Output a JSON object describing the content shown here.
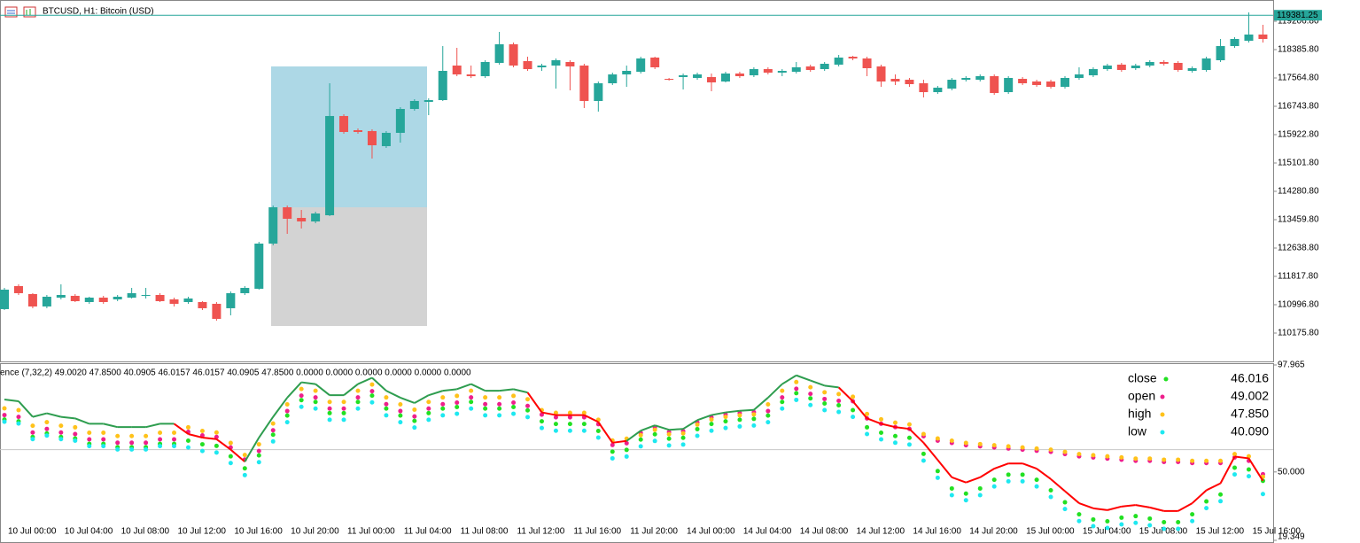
{
  "chart_data": [
    {
      "type": "candlestick",
      "title": "BTCUSD, H1:  Bitcoin (USD)",
      "categories": [
        null,
        "10 Jul 00:00",
        null,
        null,
        null,
        "10 Jul 04:00",
        null,
        null,
        null,
        "10 Jul 08:00",
        null,
        null,
        null,
        "10 Jul 12:00",
        null,
        null,
        null,
        "10 Jul 16:00",
        null,
        null,
        null,
        "10 Jul 20:00",
        null,
        null,
        null,
        "11 Jul 00:00",
        null,
        null,
        null,
        "11 Jul 04:00",
        null,
        null,
        null,
        "11 Jul 08:00",
        null,
        null,
        null,
        "11 Jul 12:00",
        null,
        null,
        null,
        "11 Jul 16:00",
        null,
        null,
        null,
        "11 Jul 20:00",
        null,
        null,
        null,
        "14 Jul 00:00",
        null,
        null,
        null,
        "14 Jul 04:00",
        null,
        null,
        null,
        "14 Jul 08:00",
        null,
        null,
        null,
        "14 Jul 12:00",
        null,
        null,
        null,
        "14 Jul 16:00",
        null,
        null,
        null,
        "14 Jul 20:00",
        null,
        null,
        null,
        "15 Jul 00:00",
        null,
        null,
        null,
        "15 Jul 04:00",
        null,
        null,
        null,
        "15 Jul 08:00",
        null,
        null,
        null,
        "15 Jul 12:00",
        null,
        null,
        null,
        "15 Jul 16:00"
      ],
      "open": [
        110869,
        111536,
        111305,
        110946,
        111202,
        111254,
        111074,
        111202,
        111151,
        111202,
        111254,
        111279,
        111151,
        111074,
        111074,
        111023,
        110895,
        111331,
        111459,
        112767,
        113819,
        113511,
        113409,
        113588,
        116462,
        116051,
        116026,
        115590,
        115975,
        116667,
        116872,
        116923,
        117924,
        117667,
        117616,
        118001,
        118540,
        118052,
        117873,
        117924,
        118027,
        117924,
        116898,
        117411,
        117667,
        117744,
        118155,
        117539,
        117590,
        117565,
        117590,
        117462,
        117693,
        117642,
        117821,
        117719,
        117744,
        117898,
        117821,
        117950,
        118180,
        118129,
        117898,
        117539,
        117513,
        117411,
        117154,
        117257,
        117513,
        117513,
        117616,
        117154,
        117539,
        117462,
        117462,
        117308,
        117565,
        117642,
        117821,
        117950,
        117847,
        117924,
        118027,
        118001,
        117770,
        117796,
        118078,
        118488,
        118642,
        118822
      ],
      "high": [
        111484,
        111587,
        111331,
        111279,
        111587,
        111305,
        111228,
        111254,
        111279,
        111484,
        111484,
        111331,
        111202,
        111228,
        111100,
        111074,
        111382,
        111536,
        112818,
        113870,
        113870,
        113742,
        113690,
        117411,
        116513,
        116103,
        116077,
        116026,
        116718,
        116949,
        116975,
        118488,
        118437,
        117924,
        118078,
        118899,
        118591,
        118180,
        117975,
        118129,
        118078,
        117975,
        117462,
        117719,
        117924,
        118180,
        118180,
        117565,
        117693,
        117719,
        117693,
        117744,
        117744,
        117873,
        117873,
        117821,
        118027,
        117950,
        118027,
        118232,
        118206,
        118180,
        117950,
        117667,
        117565,
        117513,
        117334,
        117565,
        117616,
        117667,
        117667,
        117616,
        117590,
        117513,
        117513,
        117616,
        117873,
        117873,
        117975,
        118001,
        117975,
        118078,
        118078,
        118052,
        117898,
        118180,
        118694,
        118745,
        119463,
        119104
      ],
      "low": [
        110843,
        111279,
        110895,
        110895,
        111151,
        111074,
        111023,
        111023,
        111100,
        111177,
        111177,
        111074,
        110946,
        111023,
        110843,
        110535,
        110689,
        111279,
        111433,
        112716,
        113049,
        113203,
        113357,
        113562,
        115949,
        115949,
        115230,
        115538,
        115692,
        116616,
        116487,
        116898,
        117616,
        117565,
        117565,
        117950,
        117873,
        117770,
        117770,
        117257,
        117206,
        116693,
        116590,
        117360,
        117308,
        117693,
        117821,
        117488,
        117231,
        117513,
        117180,
        117436,
        117565,
        117590,
        117667,
        117616,
        117693,
        117744,
        117770,
        117898,
        118078,
        117616,
        117308,
        117360,
        117308,
        117000,
        117103,
        117206,
        117462,
        117462,
        117077,
        117103,
        117360,
        117308,
        117257,
        117257,
        117513,
        117590,
        117770,
        117744,
        117796,
        117873,
        117924,
        117744,
        117719,
        117744,
        118027,
        118437,
        118591,
        118591
      ],
      "close": [
        111433,
        111331,
        110946,
        111228,
        111279,
        111100,
        111202,
        111074,
        111228,
        111331,
        111279,
        111100,
        111023,
        111177,
        110895,
        110587,
        111331,
        111484,
        112767,
        113819,
        113486,
        113409,
        113639,
        116462,
        116000,
        116000,
        115615,
        115975,
        116667,
        116898,
        116923,
        117770,
        117667,
        117616,
        118027,
        118540,
        117924,
        117821,
        117924,
        118078,
        117898,
        116898,
        117411,
        117667,
        117770,
        118129,
        117873,
        117513,
        117642,
        117667,
        117436,
        117693,
        117616,
        117821,
        117719,
        117770,
        117873,
        117796,
        117975,
        118155,
        118129,
        117847,
        117462,
        117462,
        117385,
        117154,
        117283,
        117513,
        117565,
        117616,
        117129,
        117565,
        117411,
        117360,
        117308,
        117565,
        117667,
        117821,
        117924,
        117796,
        117924,
        118027,
        117975,
        117796,
        117847,
        118129,
        118488,
        118694,
        118822,
        118694
      ],
      "up_color": "#26a69a",
      "down_color": "#ef5350",
      "ylim": [
        109354.8,
        119822.55
      ],
      "yticks": [
        {
          "value": 119206.8,
          "label": "119206.80"
        },
        {
          "value": 118385.8,
          "label": "118385.80"
        },
        {
          "value": 117564.8,
          "label": "117564.80"
        },
        {
          "value": 116743.8,
          "label": "116743.80"
        },
        {
          "value": 115922.8,
          "label": "115922.80"
        },
        {
          "value": 115101.8,
          "label": "115101.80"
        },
        {
          "value": 114280.8,
          "label": "114280.80"
        },
        {
          "value": 113459.8,
          "label": "113459.80"
        },
        {
          "value": 112638.8,
          "label": "112638.80"
        },
        {
          "value": 111817.8,
          "label": "111817.80"
        },
        {
          "value": 110996.8,
          "label": "110996.80"
        },
        {
          "value": 110175.8,
          "label": "110175.80"
        }
      ],
      "last_price": 119381.25
    },
    {
      "type": "indicator",
      "title": "ence (7,32,2) 49.0020 47.8500 40.0905 46.0157 46.0157 40.0905 47.8500 0.0000 0.0000 0.0000 0.0000 0.0000 0.0000",
      "ylim": [
        19.349,
        97.965
      ],
      "yticks": [
        97.965,
        {
          "value": 50,
          "label": "50.000"
        },
        19.349
      ],
      "levels": [
        60
      ],
      "line": {
        "color_up": "#2e9d4f",
        "color_down": "#ff0000",
        "values": [
          82.5,
          81.7,
          74.7,
          76.3,
          74.7,
          74.0,
          71.6,
          71.6,
          70.1,
          70.1,
          70.1,
          71.6,
          71.6,
          67.0,
          65.4,
          64.7,
          60.0,
          54.6,
          65.4,
          74.7,
          83.3,
          90.2,
          89.4,
          84.4,
          84.4,
          89.4,
          92.2,
          86.4,
          83.3,
          80.9,
          84.4,
          86.4,
          87.1,
          89.4,
          86.4,
          86.4,
          87.1,
          85.6,
          76.7,
          75.5,
          75.5,
          75.5,
          72.4,
          63.1,
          63.9,
          68.5,
          70.9,
          68.9,
          69.3,
          73.2,
          75.5,
          76.7,
          77.4,
          77.8,
          83.3,
          89.4,
          93.3,
          91.0,
          88.7,
          87.9,
          81.7,
          74.0,
          71.6,
          70.1,
          69.3,
          63.1,
          55.4,
          47.6,
          45.3,
          47.6,
          51.5,
          53.8,
          53.8,
          51.5,
          46.8,
          41.4,
          36.0,
          33.7,
          32.9,
          34.5,
          35.2,
          34.1,
          32.5,
          32.5,
          36.0,
          41.8,
          44.9,
          56.9,
          56.1,
          46.016
        ]
      },
      "series": [
        {
          "name": "close",
          "color": "#22e022",
          "last_label": "46.016",
          "values": [
            73.5,
            72.7,
            65.7,
            67.3,
            65.7,
            65.0,
            62.6,
            62.6,
            61.1,
            61.1,
            61.1,
            62.6,
            62.6,
            64.0,
            62.4,
            61.7,
            57.0,
            51.6,
            57.4,
            66.7,
            75.3,
            82.2,
            81.4,
            76.4,
            76.4,
            81.4,
            84.2,
            78.4,
            75.3,
            72.9,
            76.4,
            78.4,
            79.1,
            81.4,
            78.4,
            78.4,
            79.1,
            77.6,
            72.7,
            71.5,
            71.5,
            71.5,
            68.4,
            59.1,
            59.9,
            64.5,
            66.9,
            64.9,
            65.3,
            69.2,
            71.5,
            72.7,
            73.4,
            73.8,
            75.3,
            81.4,
            85.3,
            83.0,
            80.7,
            79.9,
            77.7,
            70.0,
            67.6,
            66.1,
            65.3,
            58.1,
            50.4,
            42.6,
            40.3,
            42.6,
            46.5,
            48.8,
            48.8,
            46.5,
            41.8,
            36.4,
            31.0,
            28.7,
            27.9,
            29.5,
            30.2,
            29.1,
            27.5,
            27.5,
            31.0,
            36.8,
            39.9,
            51.9,
            51.1,
            46.016
          ]
        },
        {
          "name": "open",
          "color": "#ee1f8c",
          "last_label": "49.002",
          "values": [
            75.5,
            74.7,
            67.7,
            69.3,
            67.7,
            67.0,
            64.6,
            64.6,
            63.1,
            63.1,
            63.1,
            64.6,
            64.6,
            68.0,
            66.4,
            65.7,
            61.0,
            55.6,
            59.4,
            68.7,
            77.3,
            84.2,
            83.4,
            78.4,
            78.4,
            83.4,
            86.2,
            80.4,
            77.3,
            74.9,
            78.4,
            80.4,
            81.1,
            83.4,
            80.4,
            80.4,
            81.1,
            79.6,
            75.7,
            74.5,
            74.5,
            74.5,
            71.4,
            62.1,
            62.9,
            67.5,
            69.9,
            67.9,
            68.3,
            72.2,
            74.5,
            75.7,
            76.4,
            76.8,
            77.3,
            83.4,
            87.3,
            85.0,
            82.7,
            81.9,
            81.7,
            74.0,
            71.6,
            70.1,
            69.3,
            66,
            64,
            63,
            62,
            61.5,
            61,
            60.5,
            60,
            59.5,
            59,
            58,
            57,
            56.5,
            56,
            55.5,
            55,
            55,
            54.5,
            54.5,
            54,
            54,
            54,
            56.5,
            55,
            49.002
          ]
        },
        {
          "name": "high",
          "color": "#ffc21a",
          "last_label": "47.850",
          "values": [
            78.5,
            77.7,
            70.7,
            72.3,
            70.7,
            70.0,
            67.6,
            67.6,
            66.1,
            66.1,
            66.1,
            67.6,
            67.6,
            70.0,
            68.4,
            67.7,
            63.0,
            57.6,
            62.4,
            71.7,
            80.3,
            87.2,
            86.4,
            81.4,
            81.4,
            86.4,
            89.2,
            83.4,
            80.3,
            77.9,
            81.4,
            83.4,
            84.1,
            86.4,
            83.4,
            83.4,
            84.1,
            82.6,
            77.7,
            76.5,
            76.5,
            76.5,
            73.4,
            64.1,
            64.9,
            66.5,
            68.9,
            66.9,
            67.3,
            71.2,
            73.5,
            74.7,
            75.4,
            75.8,
            80.3,
            86.4,
            90.3,
            88.0,
            85.7,
            84.9,
            83.7,
            76.0,
            73.6,
            72.1,
            71.3,
            67,
            65,
            64,
            63,
            62.5,
            62,
            61.5,
            61,
            60.5,
            60,
            59,
            58,
            57.5,
            57,
            56.5,
            56,
            56,
            55.5,
            55.5,
            55,
            55,
            55,
            58,
            57,
            47.85
          ]
        },
        {
          "name": "low",
          "color": "#1ee8f0",
          "last_label": "40.090",
          "values": [
            72.5,
            71.7,
            64.7,
            66.3,
            64.7,
            64.0,
            61.6,
            61.6,
            60.1,
            60.1,
            60.1,
            61.6,
            61.6,
            61.0,
            59.4,
            58.7,
            54.0,
            48.6,
            54.4,
            63.7,
            72.3,
            79.2,
            78.4,
            73.4,
            73.4,
            78.4,
            81.2,
            75.4,
            72.3,
            69.9,
            73.4,
            75.4,
            76.1,
            78.4,
            75.4,
            75.4,
            76.1,
            74.6,
            69.7,
            68.5,
            68.5,
            68.5,
            65.4,
            56.1,
            56.9,
            61.5,
            63.9,
            61.9,
            62.3,
            66.2,
            68.5,
            69.7,
            70.4,
            70.8,
            72.3,
            78.4,
            82.3,
            80.0,
            77.7,
            76.9,
            74.7,
            67.0,
            64.6,
            63.1,
            62.3,
            55.1,
            47.4,
            39.6,
            37.3,
            39.6,
            43.5,
            45.8,
            45.8,
            43.5,
            38.8,
            33.4,
            28.0,
            25.7,
            24.9,
            26.5,
            27.2,
            26.1,
            24.5,
            24.5,
            28.0,
            33.8,
            36.9,
            48.9,
            48.1,
            40.09
          ]
        }
      ]
    }
  ]
}
